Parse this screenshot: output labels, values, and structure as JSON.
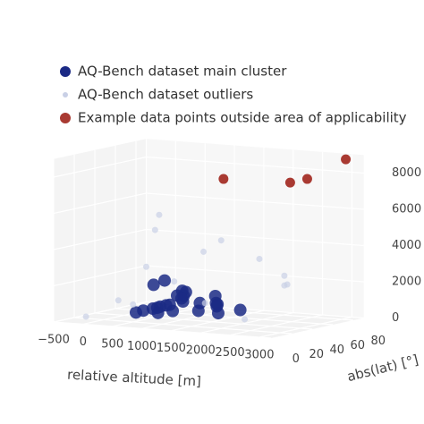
{
  "chart_data": {
    "type": "scatter3d",
    "series": [
      {
        "name": "AQ-Bench dataset main cluster",
        "color": "#1b2a85",
        "x": [
          200,
          400,
          600,
          800,
          1000,
          1200,
          1400,
          1600,
          300,
          500,
          700,
          900,
          1100,
          1300,
          500,
          800,
          1000,
          1200,
          700,
          900,
          1500,
          1800,
          600,
          1000,
          400
        ],
        "y": [
          40,
          45,
          50,
          35,
          40,
          45,
          50,
          40,
          55,
          30,
          60,
          45,
          35,
          55,
          40,
          50,
          30,
          60,
          35,
          40,
          45,
          50,
          45,
          55,
          50
        ],
        "z": [
          200,
          400,
          600,
          800,
          1000,
          900,
          700,
          500,
          300,
          500,
          1200,
          1500,
          1400,
          800,
          1800,
          1000,
          600,
          1100,
          700,
          1300,
          900,
          600,
          2000,
          300,
          100
        ]
      },
      {
        "name": "AQ-Bench dataset outliers",
        "color": "#c9d0e6",
        "x": [
          -300,
          -200,
          2600,
          2900,
          700,
          770,
          1000,
          1200,
          2200,
          -100,
          1600,
          1900,
          1300,
          2400,
          200
        ],
        "y": [
          20,
          60,
          50,
          30,
          30,
          30,
          60,
          20,
          70,
          40,
          80,
          10,
          60,
          20,
          50
        ],
        "z": [
          100,
          300,
          2200,
          3000,
          5000,
          5850,
          3500,
          2400,
          1800,
          800,
          3000,
          1500,
          4200,
          600,
          2600
        ]
      },
      {
        "name": "Example data points outside area of applicability",
        "color": "#a93a32",
        "x": [
          1690,
          2124,
          2414,
          3070
        ],
        "y": [
          40,
          80,
          80,
          80
        ],
        "z": [
          7930,
          7340,
          7610,
          8850
        ]
      }
    ],
    "xlabel": "relative altitude [m]",
    "ylabel": "abs(lat) [°]",
    "xlim": [
      -500,
      3200
    ],
    "ylim": [
      0,
      90
    ],
    "zlim": [
      0,
      9000
    ],
    "xticks": [
      {
        "value": -500,
        "label": "−500"
      },
      0,
      500,
      1000,
      1500,
      2000,
      2500,
      3000
    ],
    "yticks": [
      0,
      20,
      40,
      60,
      80
    ],
    "zticks": [
      0,
      2000,
      4000,
      6000,
      8000
    ],
    "grid": true
  }
}
